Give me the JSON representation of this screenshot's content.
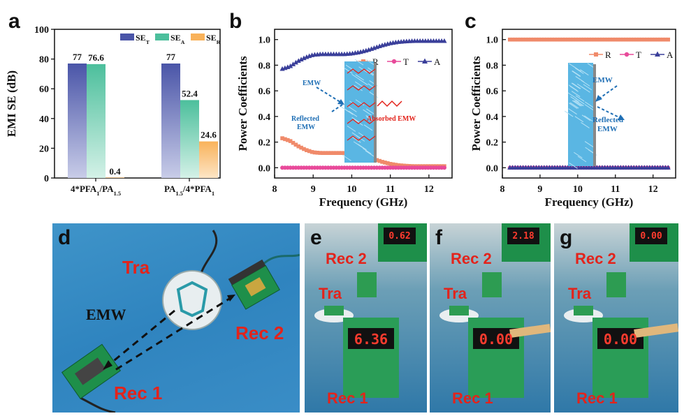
{
  "panels": {
    "a": "a",
    "b": "b",
    "c": "c",
    "d": "d",
    "e": "e",
    "f": "f",
    "g": "g"
  },
  "chart_data": [
    {
      "id": "a",
      "type": "bar",
      "ylabel": "EMI SE (dB)",
      "ylim": [
        0,
        100
      ],
      "yticks": [
        "0",
        "20",
        "40",
        "60",
        "80",
        "100"
      ],
      "categories": [
        "4*PFA1/PA1.5",
        "PA1.5/4*PFA1"
      ],
      "category_labels": [
        {
          "parts": [
            [
              "4*PFA",
              ""
            ],
            [
              "1",
              "sub"
            ],
            [
              "/PA",
              ""
            ],
            [
              "1.5",
              "sub"
            ]
          ]
        },
        {
          "parts": [
            [
              "PA",
              ""
            ],
            [
              "1.5",
              "sub"
            ],
            [
              "/4*PFA",
              ""
            ],
            [
              "1",
              "sub"
            ]
          ]
        }
      ],
      "legend": [
        {
          "base": "SE",
          "sub": "T",
          "color": "#4a55a8"
        },
        {
          "base": "SE",
          "sub": "A",
          "color": "#4cbf9c"
        },
        {
          "base": "SE",
          "sub": "R",
          "color": "#f9b25a"
        }
      ],
      "series": [
        {
          "name": "SE_T",
          "values": [
            77,
            77
          ],
          "labels": [
            "77",
            "77"
          ]
        },
        {
          "name": "SE_A",
          "values": [
            76.6,
            52.4
          ],
          "labels": [
            "76.6",
            "52.4"
          ]
        },
        {
          "name": "SE_R",
          "values": [
            0.4,
            24.6
          ],
          "labels": [
            "0.4",
            "24.6"
          ]
        }
      ]
    },
    {
      "id": "b",
      "type": "line",
      "xlabel": "Frequency (GHz)",
      "ylabel": "Power Coefficients",
      "xlim": [
        8,
        12.6
      ],
      "ylim": [
        -0.08,
        1.08
      ],
      "xticks": [
        "8",
        "9",
        "10",
        "11",
        "12"
      ],
      "yticks": [
        "0.0",
        "0.2",
        "0.4",
        "0.6",
        "0.8",
        "1.0"
      ],
      "legend_position": "top-right",
      "series": [
        {
          "name": "R",
          "color": "#f08a6a",
          "marker": "square",
          "x": [
            8.2,
            8.4,
            8.6,
            8.8,
            9.0,
            9.2,
            9.4,
            9.6,
            9.8,
            10.0,
            10.2,
            10.4,
            10.6,
            10.8,
            11.0,
            11.2,
            11.4,
            11.6,
            11.8,
            12.0,
            12.2,
            12.4
          ],
          "y": [
            0.23,
            0.21,
            0.17,
            0.14,
            0.12,
            0.115,
            0.115,
            0.115,
            0.115,
            0.11,
            0.1,
            0.085,
            0.065,
            0.045,
            0.03,
            0.02,
            0.015,
            0.012,
            0.012,
            0.012,
            0.012,
            0.012
          ]
        },
        {
          "name": "T",
          "color": "#e84a9a",
          "marker": "circle",
          "x": [
            8.2,
            8.4,
            8.6,
            8.8,
            9.0,
            9.2,
            9.4,
            9.6,
            9.8,
            10.0,
            10.2,
            10.4,
            10.6,
            10.8,
            11.0,
            11.2,
            11.4,
            11.6,
            11.8,
            12.0,
            12.2,
            12.4
          ],
          "y": [
            0,
            0,
            0,
            0,
            0,
            0,
            0,
            0,
            0,
            0,
            0,
            0,
            0,
            0,
            0,
            0,
            0,
            0,
            0,
            0,
            0,
            0
          ]
        },
        {
          "name": "A",
          "color": "#3a3f9a",
          "marker": "triangle",
          "x": [
            8.2,
            8.4,
            8.6,
            8.8,
            9.0,
            9.2,
            9.4,
            9.6,
            9.8,
            10.0,
            10.2,
            10.4,
            10.6,
            10.8,
            11.0,
            11.2,
            11.4,
            11.6,
            11.8,
            12.0,
            12.2,
            12.4
          ],
          "y": [
            0.77,
            0.79,
            0.83,
            0.86,
            0.88,
            0.885,
            0.885,
            0.885,
            0.885,
            0.89,
            0.9,
            0.915,
            0.935,
            0.955,
            0.97,
            0.98,
            0.985,
            0.988,
            0.988,
            0.988,
            0.988,
            0.988
          ]
        }
      ],
      "annotations": {
        "emw": "EMW",
        "reflected": "Reflected",
        "reflected2": "EMW",
        "absorbed": "Absorbed EMW"
      }
    },
    {
      "id": "c",
      "type": "line",
      "xlabel": "Frequency (GHz)",
      "ylabel": "Power Coefficients",
      "xlim": [
        8,
        12.6
      ],
      "ylim": [
        -0.08,
        1.08
      ],
      "xticks": [
        "8",
        "9",
        "10",
        "11",
        "12"
      ],
      "yticks": [
        "0.0",
        "0.2",
        "0.4",
        "0.6",
        "0.8",
        "1.0"
      ],
      "legend_position": "top-right",
      "series": [
        {
          "name": "R",
          "color": "#f08a6a",
          "marker": "square",
          "x": [
            8.2,
            8.4,
            8.6,
            8.8,
            9.0,
            9.2,
            9.4,
            9.6,
            9.8,
            10.0,
            10.2,
            10.4,
            10.6,
            10.8,
            11.0,
            11.2,
            11.4,
            11.6,
            11.8,
            12.0,
            12.2,
            12.4
          ],
          "y": [
            1,
            1,
            1,
            1,
            1,
            1,
            1,
            1,
            1,
            1,
            1,
            1,
            1,
            1,
            1,
            1,
            1,
            1,
            1,
            1,
            1,
            1
          ]
        },
        {
          "name": "T",
          "color": "#e84a9a",
          "marker": "circle",
          "x": [
            8.2,
            8.4,
            8.6,
            8.8,
            9.0,
            9.2,
            9.4,
            9.6,
            9.8,
            10.0,
            10.2,
            10.4,
            10.6,
            10.8,
            11.0,
            11.2,
            11.4,
            11.6,
            11.8,
            12.0,
            12.2,
            12.4
          ],
          "y": [
            0,
            0,
            0,
            0,
            0,
            0,
            0,
            0,
            0,
            0,
            0,
            0,
            0,
            0,
            0,
            0,
            0,
            0,
            0,
            0,
            0,
            0
          ]
        },
        {
          "name": "A",
          "color": "#3a3f9a",
          "marker": "triangle",
          "x": [
            8.2,
            8.4,
            8.6,
            8.8,
            9.0,
            9.2,
            9.4,
            9.6,
            9.8,
            10.0,
            10.2,
            10.4,
            10.6,
            10.8,
            11.0,
            11.2,
            11.4,
            11.6,
            11.8,
            12.0,
            12.2,
            12.4
          ],
          "y": [
            0,
            0,
            0,
            0,
            0,
            0,
            0,
            0,
            0,
            0,
            0,
            0,
            0,
            0,
            0,
            0,
            0,
            0,
            0,
            0,
            0,
            0
          ]
        }
      ],
      "annotations": {
        "emw": "EMW",
        "reflected": "Reflected",
        "reflected2": "EMW"
      }
    }
  ],
  "photos": {
    "d": {
      "tra": "Tra",
      "emw": "EMW",
      "rec2": "Rec 2",
      "rec1": "Rec 1"
    },
    "e": {
      "rec2": "Rec 2",
      "tra": "Tra",
      "rec1": "Rec 1",
      "display_rec2": "0.62",
      "display_rec1": "6.36"
    },
    "f": {
      "rec2": "Rec 2",
      "tra": "Tra",
      "rec1": "Rec 1",
      "display_rec2": "2.18",
      "display_rec1": "0.00"
    },
    "g": {
      "rec2": "Rec 2",
      "tra": "Tra",
      "rec1": "Rec 1",
      "display_rec2": "0.00",
      "display_rec1": "0.00"
    }
  }
}
